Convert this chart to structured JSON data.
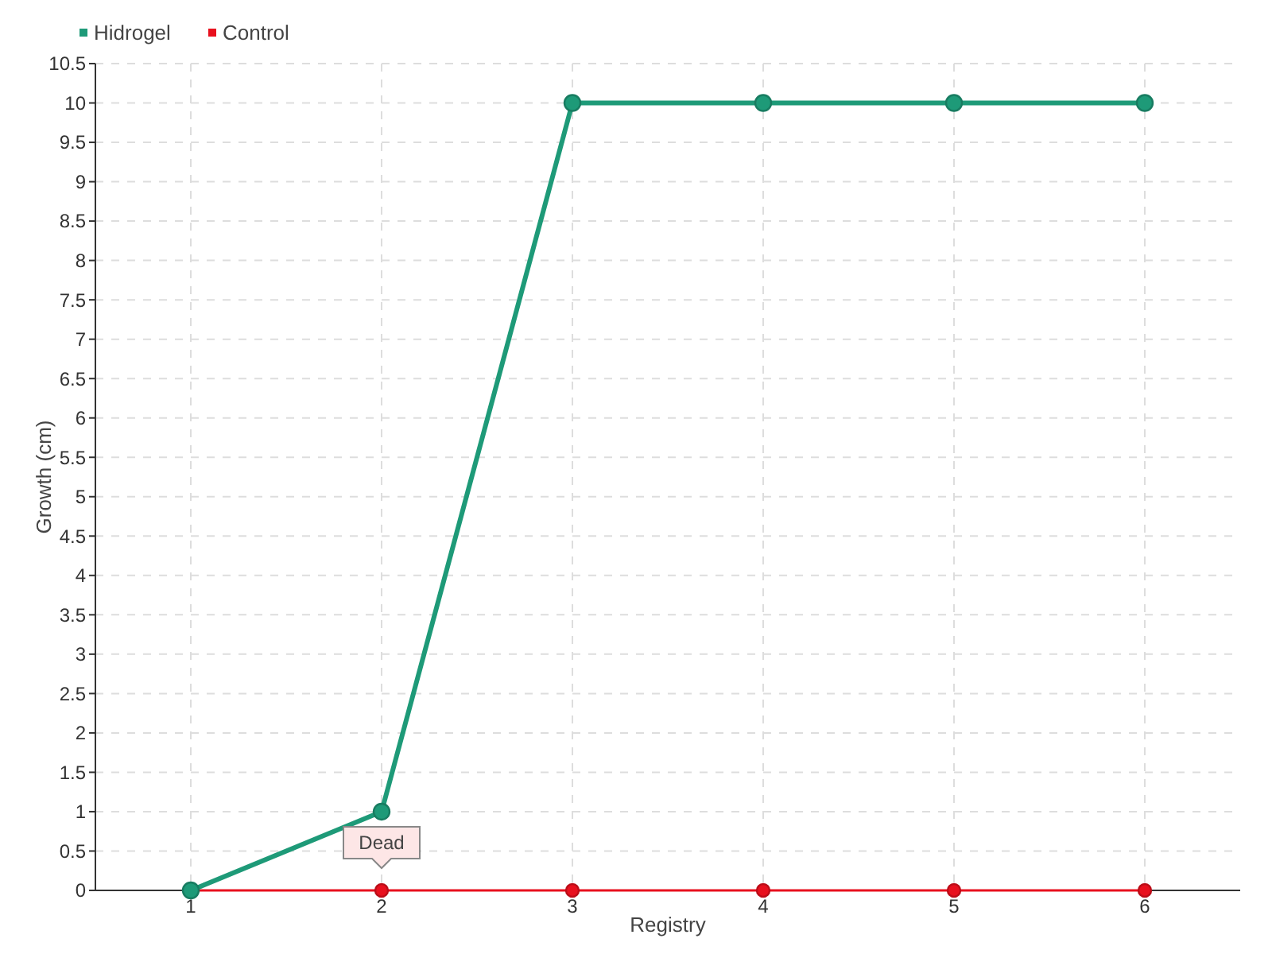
{
  "chart_data": {
    "type": "line",
    "xlabel": "Registry",
    "ylabel": "Growth (cm)",
    "x": [
      1,
      2,
      3,
      4,
      5,
      6
    ],
    "series": [
      {
        "name": "Hidrogel",
        "color": "#1e9a78",
        "values": [
          0,
          1,
          10,
          10,
          10,
          10
        ]
      },
      {
        "name": "Control",
        "color": "#e8101e",
        "values": [
          0,
          0,
          0,
          0,
          0,
          0
        ]
      }
    ],
    "xlim": [
      0.5,
      6.5
    ],
    "xticks": [
      1,
      2,
      3,
      4,
      5,
      6
    ],
    "ylim": [
      0,
      10.5
    ],
    "yticks": [
      0,
      0.5,
      1,
      1.5,
      2,
      2.5,
      3,
      3.5,
      4,
      4.5,
      5,
      5.5,
      6,
      6.5,
      7,
      7.5,
      8,
      8.5,
      9,
      9.5,
      10,
      10.5
    ],
    "grid": true,
    "legend": "top left",
    "marker": "circle",
    "line_style": "solid",
    "annotations": [
      {
        "text": "Dead",
        "x": 2,
        "y": 0
      }
    ]
  }
}
